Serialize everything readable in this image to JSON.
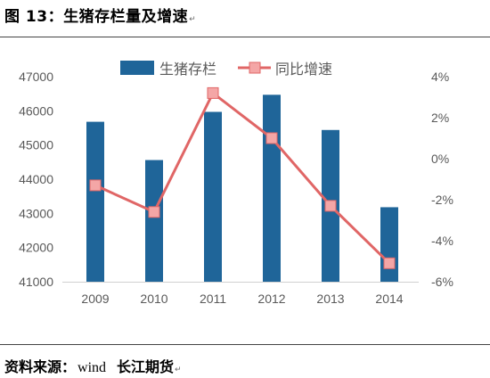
{
  "figure": {
    "title": "图 13：生猪存栏量及增速",
    "source_label": "资料来源：",
    "source_value": "wind",
    "source_org": "长江期货"
  },
  "chart_data": {
    "type": "bar",
    "categories": [
      "2009",
      "2010",
      "2011",
      "2012",
      "2013",
      "2014"
    ],
    "series": [
      {
        "name": "生猪存栏",
        "type": "bar",
        "axis": "left",
        "color": "#1F6599",
        "values": [
          45680,
          44560,
          45970,
          46470,
          45440,
          43180
        ]
      },
      {
        "name": "同比增速",
        "type": "line",
        "axis": "right",
        "color": "#E06666",
        "values": [
          -1.3,
          -2.6,
          3.2,
          1.0,
          -2.3,
          -5.1
        ]
      }
    ],
    "y_left": {
      "min": 41000,
      "max": 47000,
      "ticks": [
        41000,
        42000,
        43000,
        44000,
        45000,
        46000,
        47000
      ]
    },
    "y_right": {
      "min": -6,
      "max": 4,
      "ticks": [
        -6,
        -4,
        -2,
        0,
        2,
        4
      ],
      "tick_labels": [
        "-6%",
        "-4%",
        "-2%",
        "0%",
        "2%",
        "4%"
      ]
    },
    "legend_position": "top",
    "grid": false
  }
}
